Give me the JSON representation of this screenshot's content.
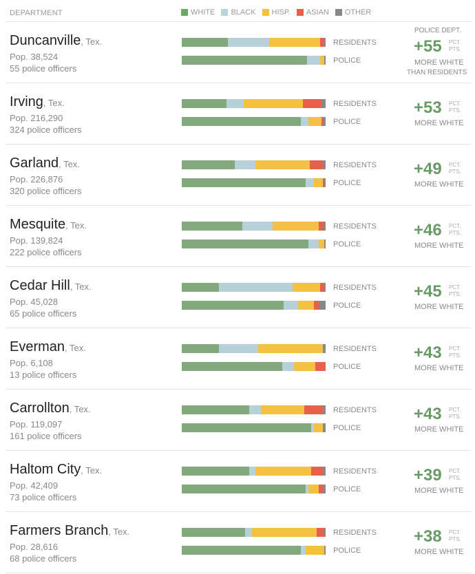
{
  "header": {
    "department": "DEPARTMENT",
    "legend": [
      {
        "label": "WHITE",
        "color": "#6aa868"
      },
      {
        "label": "BLACK",
        "color": "#b8d4dc"
      },
      {
        "label": "HISP.",
        "color": "#f5c143"
      },
      {
        "label": "ASIAN",
        "color": "#e8604c"
      },
      {
        "label": "OTHER",
        "color": "#888888"
      }
    ]
  },
  "labels": {
    "residents": "RESIDENTS",
    "police": "POLICE",
    "pct": "PCT.",
    "pts": "PTS.",
    "more_white": "MORE WHITE",
    "top_label": "POLICE DEPT.",
    "than_residents": "THAN RESIDENTS"
  },
  "segment_colors": [
    "#82a97e",
    "#b8d0d8",
    "#f5c143",
    "#e8604c",
    "#888888"
  ],
  "chart_data": {
    "type": "bar",
    "title": "",
    "categories": [
      "WHITE",
      "BLACK",
      "HISP.",
      "ASIAN",
      "OTHER"
    ],
    "departments": [
      {
        "city": "Duncanville",
        "state": ", Tex.",
        "pop": "Pop. 38,524",
        "officers": "55 police officers",
        "diff": "+55",
        "residents": [
          32,
          29,
          35,
          3,
          1
        ],
        "police": [
          87,
          9,
          3,
          0,
          1
        ]
      },
      {
        "city": "Irving",
        "state": ", Tex.",
        "pop": "Pop. 216,290",
        "officers": "324 police officers",
        "diff": "+53",
        "residents": [
          31,
          12,
          41,
          13,
          3
        ],
        "police": [
          83,
          5,
          9,
          1,
          2
        ]
      },
      {
        "city": "Garland",
        "state": ", Tex.",
        "pop": "Pop. 226,876",
        "officers": "320 police officers",
        "diff": "+49",
        "residents": [
          37,
          14,
          38,
          9,
          2
        ],
        "police": [
          86,
          6,
          6,
          1,
          1
        ]
      },
      {
        "city": "Mesquite",
        "state": ", Tex.",
        "pop": "Pop. 139,824",
        "officers": "222 police officers",
        "diff": "+46",
        "residents": [
          42,
          21,
          32,
          4,
          1
        ],
        "police": [
          88,
          7,
          4,
          0,
          1
        ]
      },
      {
        "city": "Cedar Hill",
        "state": ", Tex.",
        "pop": "Pop. 45,028",
        "officers": "65 police officers",
        "diff": "+45",
        "residents": [
          26,
          51,
          19,
          3,
          1
        ],
        "police": [
          71,
          10,
          11,
          3,
          5
        ]
      },
      {
        "city": "Everman",
        "state": ", Tex.",
        "pop": "Pop. 6,108",
        "officers": "13 police officers",
        "diff": "+43",
        "residents": [
          26,
          27,
          45,
          0,
          2
        ],
        "police": [
          70,
          8,
          15,
          7,
          0
        ]
      },
      {
        "city": "Carrollton",
        "state": ", Tex.",
        "pop": "Pop. 119,097",
        "officers": "161 police officers",
        "diff": "+43",
        "residents": [
          47,
          8,
          30,
          13,
          2
        ],
        "police": [
          90,
          2,
          6,
          0,
          2
        ]
      },
      {
        "city": "Haltom City",
        "state": ", Tex.",
        "pop": "Pop. 42,409",
        "officers": "73 police officers",
        "diff": "+39",
        "residents": [
          47,
          4,
          39,
          8,
          2
        ],
        "police": [
          86,
          2,
          7,
          3,
          2
        ]
      },
      {
        "city": "Farmers Branch",
        "state": ", Tex.",
        "pop": "Pop. 28,616",
        "officers": "68 police officers",
        "diff": "+38",
        "residents": [
          44,
          5,
          45,
          5,
          1
        ],
        "police": [
          83,
          3,
          13,
          0,
          1
        ]
      }
    ]
  }
}
